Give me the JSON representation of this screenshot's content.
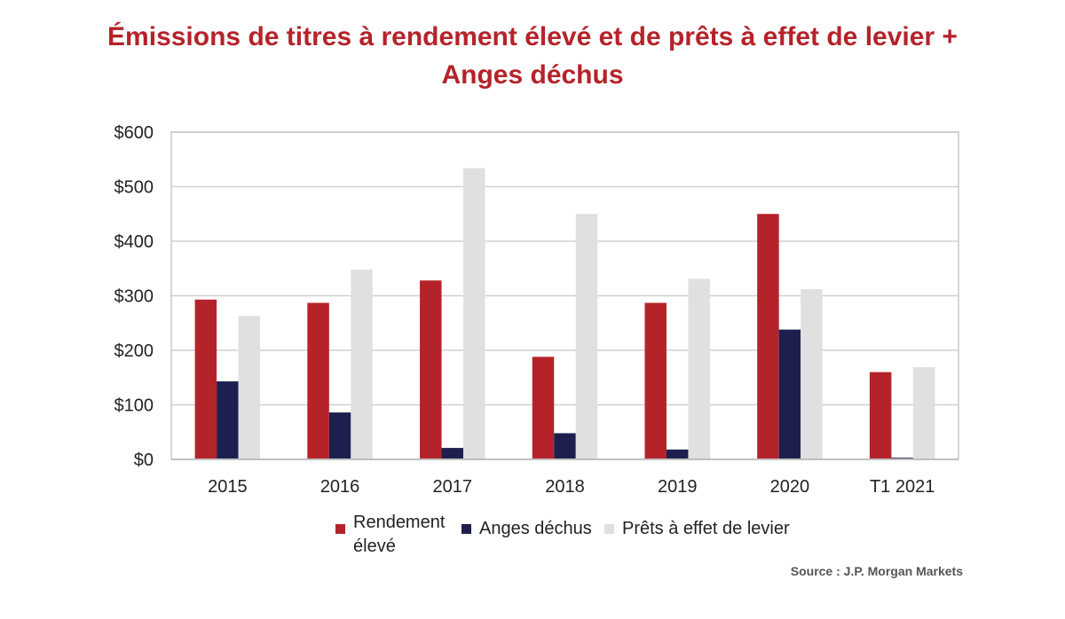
{
  "title_line1": "Émissions de titres à rendement élevé et de prêts à effet de levier +",
  "title_line2": "Anges déchus",
  "source": "Source : J.P. Morgan Markets",
  "colors": {
    "high_yield": "#b5232a",
    "fallen_angels": "#1f1f4f",
    "leveraged_loans": "#e0e0e0",
    "grid": "#d0d0d0"
  },
  "legend": {
    "high_yield_line1": "Rendement",
    "high_yield_line2": "élevé",
    "fallen_angels": "Anges déchus",
    "leveraged_loans": "Prêts à effet de levier"
  },
  "chart_data": {
    "type": "bar",
    "categories": [
      "2015",
      "2016",
      "2017",
      "2018",
      "2019",
      "2020",
      "T1 2021"
    ],
    "series": [
      {
        "name": "Rendement élevé",
        "values": [
          293,
          287,
          328,
          188,
          287,
          450,
          160
        ]
      },
      {
        "name": "Anges déchus",
        "values": [
          143,
          86,
          21,
          48,
          18,
          238,
          3
        ]
      },
      {
        "name": "Prêts à effet de levier",
        "values": [
          263,
          348,
          534,
          450,
          331,
          312,
          169
        ]
      }
    ],
    "yticks": [
      "$0",
      "$100",
      "$200",
      "$300",
      "$400",
      "$500",
      "$600"
    ],
    "ylim": [
      0,
      600
    ],
    "grid": true,
    "legend_position": "bottom"
  }
}
